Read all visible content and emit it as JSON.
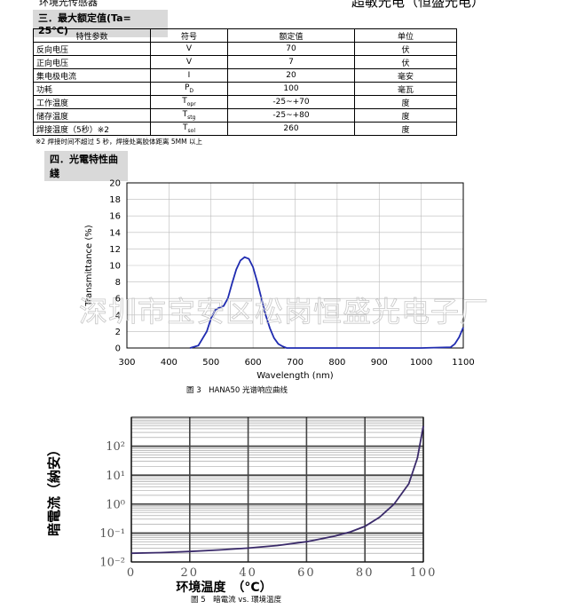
{
  "header": {
    "left": "环境光传感器",
    "right": "超敏光电（恒盛光电）"
  },
  "section3": "三．最大额定值(Ta= 25°C)",
  "table": {
    "columns": [
      "特性参数",
      "符号",
      "额定值",
      "单位"
    ],
    "rows": [
      [
        "反向电压",
        {
          "text": "V"
        },
        "70",
        "伏"
      ],
      [
        "正向电压",
        {
          "text": "V"
        },
        "7",
        "伏"
      ],
      [
        "集电极电流",
        {
          "text": "I"
        },
        "20",
        "毫安"
      ],
      [
        "功耗",
        {
          "text": "P",
          "sub": "D"
        },
        "100",
        "毫瓦"
      ],
      [
        "工作温度",
        {
          "text": "T",
          "sub": "opr"
        },
        "-25~+70",
        "度"
      ],
      [
        "储存温度",
        {
          "text": "T",
          "sub": "stg"
        },
        "-25~+80",
        "度"
      ],
      [
        "焊接温度（5秒）※2",
        {
          "text": "T",
          "sub": "sol"
        },
        "260",
        "度"
      ]
    ]
  },
  "note": "※2 焊接时间不超过 5 秒，焊接处离胶体距离 5MM 以上",
  "section4": "四．光電特性曲綫",
  "watermark": "深圳市宝安区松岗恒盛光电子厂",
  "chart_data": [
    {
      "type": "line",
      "caption": "圖 3　HANA50 光谱响应曲线",
      "xlabel": "Wavelength (nm)",
      "ylabel": "Transmittance (%)",
      "x": [
        450,
        470,
        490,
        500,
        510,
        520,
        530,
        540,
        550,
        560,
        570,
        580,
        590,
        600,
        610,
        620,
        630,
        640,
        650,
        660,
        670,
        680,
        700,
        800,
        900,
        1000,
        1070,
        1080,
        1090,
        1100
      ],
      "series": [
        {
          "color": "#1f2bb0",
          "values": [
            0,
            0.3,
            2,
            3.6,
            4.6,
            4.9,
            5.1,
            6,
            7.8,
            9.5,
            10.6,
            11,
            10.8,
            9.8,
            8,
            6,
            4,
            2.4,
            1.2,
            0.5,
            0.2,
            0,
            0,
            0,
            0,
            0,
            0.1,
            0.5,
            1.3,
            2.5
          ]
        }
      ],
      "xlim": [
        300,
        1100
      ],
      "xticks": [
        300,
        400,
        500,
        600,
        700,
        800,
        900,
        1000,
        1100
      ],
      "ylim": [
        0,
        20
      ],
      "yticks": [
        0,
        2,
        4,
        6,
        8,
        10,
        12,
        14,
        16,
        18,
        20
      ],
      "grid": true,
      "log_y": false
    },
    {
      "type": "line",
      "caption": "圖 5　暗電流 vs. 環境溫度",
      "xlabel": "环境温度　（°C）",
      "ylabel": "暗電流（納安）",
      "x": [
        0,
        10,
        20,
        30,
        40,
        50,
        60,
        70,
        75,
        80,
        85,
        90,
        95,
        98,
        100
      ],
      "series": [
        {
          "color": "#3a2a6a",
          "values": [
            0.02,
            0.021,
            0.023,
            0.026,
            0.03,
            0.037,
            0.05,
            0.08,
            0.11,
            0.17,
            0.35,
            1,
            5,
            40,
            500
          ]
        }
      ],
      "xlim": [
        0,
        100
      ],
      "xticks": [
        0,
        20,
        40,
        60,
        80,
        100
      ],
      "ylim": [
        0.01,
        1000
      ],
      "yticks": [
        {
          "value": 0.01,
          "label": "10⁻²"
        },
        {
          "value": 0.1,
          "label": "10⁻¹"
        },
        {
          "value": 1,
          "label": "10⁰"
        },
        {
          "value": 10,
          "label": "10¹"
        },
        {
          "value": 100,
          "label": "10²"
        }
      ],
      "grid": true,
      "log_y": true
    }
  ]
}
